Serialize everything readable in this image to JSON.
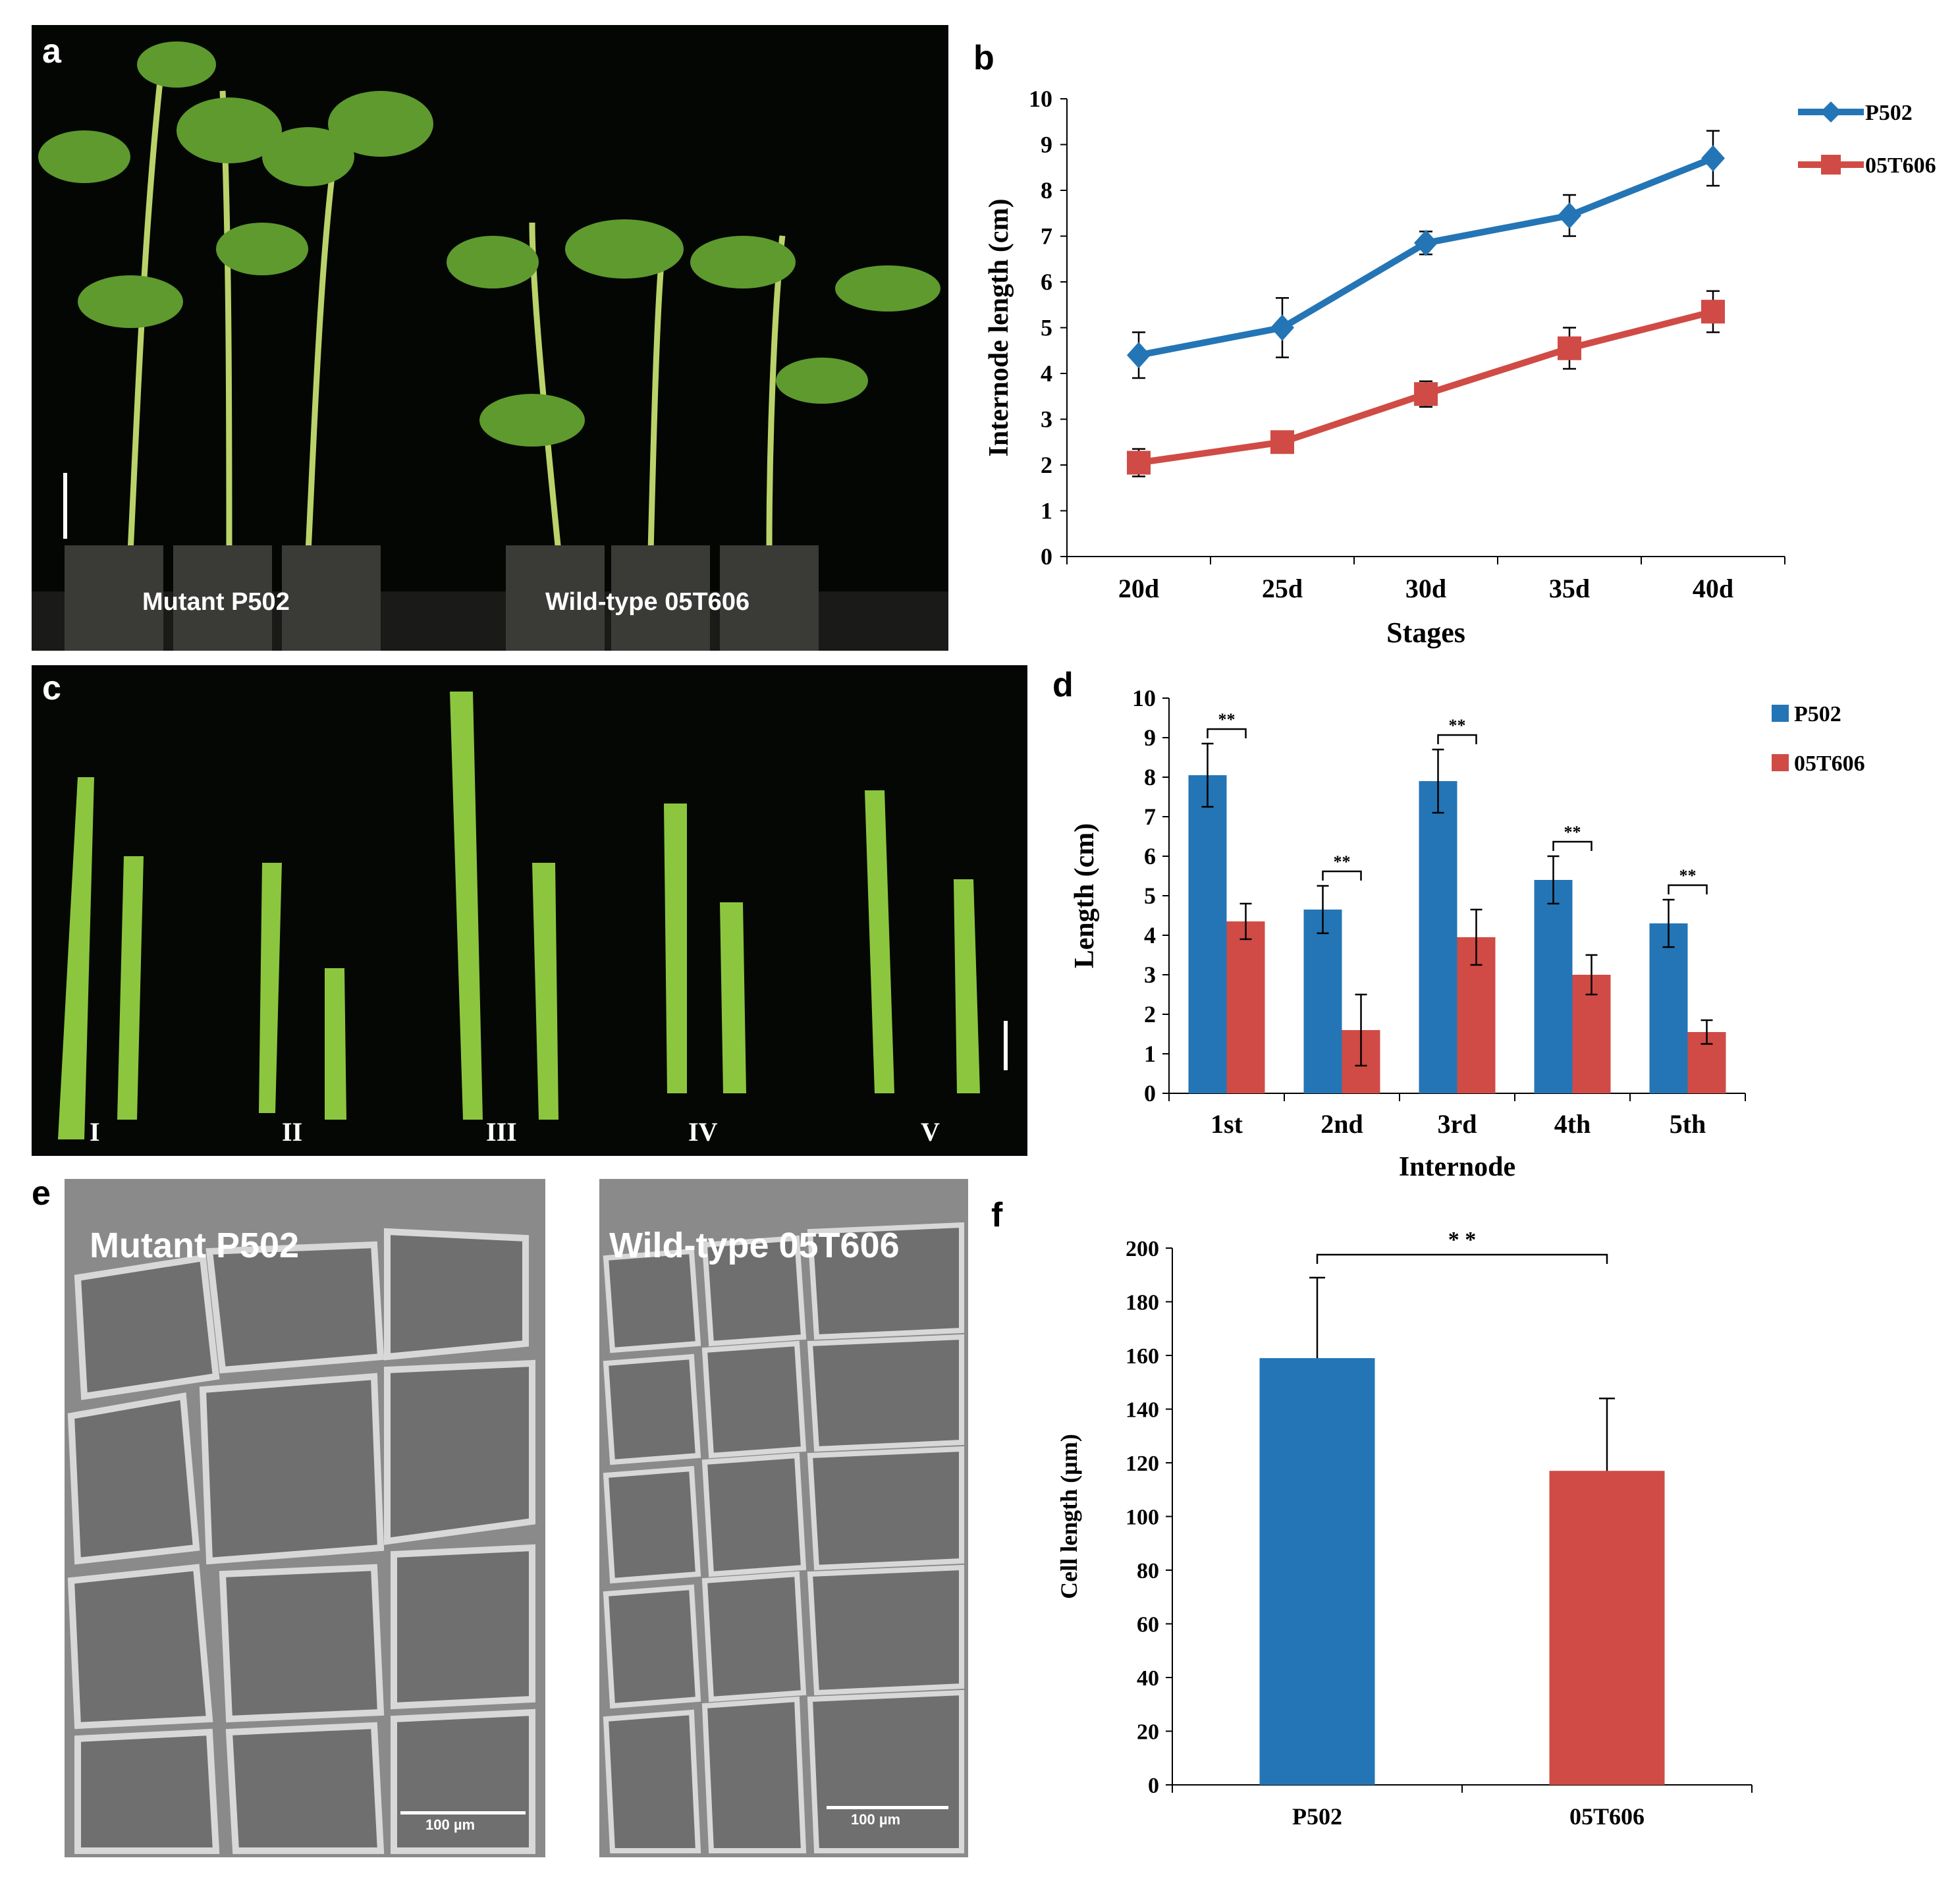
{
  "panels": {
    "a": {
      "letter": "a",
      "label_mutant": "Mutant P502",
      "label_wildtype": "Wild-type  05T606"
    },
    "b": {
      "letter": "b"
    },
    "c": {
      "letter": "c",
      "roman": [
        "I",
        "II",
        "III",
        "IV",
        "V"
      ]
    },
    "d": {
      "letter": "d"
    },
    "e": {
      "letter": "e",
      "label_mutant": "Mutant P502",
      "label_wildtype": "Wild-type 05T606",
      "scale_bar": "100 µm"
    },
    "f": {
      "letter": "f"
    }
  },
  "colors": {
    "p502": "#2475b5",
    "t606": "#d04b45",
    "photo_bg": "#050705",
    "plant": "#7bb83a",
    "sem": "#8a8a8a"
  },
  "chart_data": [
    {
      "id": "b",
      "type": "line",
      "categories": [
        "20d",
        "25d",
        "30d",
        "35d",
        "40d"
      ],
      "series": [
        {
          "name": "P502",
          "values": [
            4.4,
            5.0,
            6.85,
            7.45,
            8.7
          ],
          "errors": [
            0.5,
            0.65,
            0.25,
            0.45,
            0.6
          ]
        },
        {
          "name": "05T606",
          "values": [
            2.05,
            2.5,
            3.55,
            4.55,
            5.35
          ],
          "errors": [
            0.3,
            0.2,
            0.28,
            0.45,
            0.45
          ]
        }
      ],
      "xlabel": "Stages",
      "ylabel": "Internode  length (cm)",
      "ylim": [
        0,
        10
      ],
      "yticks": [
        "0",
        "1",
        "2",
        "3",
        "4",
        "5",
        "6",
        "7",
        "8",
        "9",
        "10"
      ],
      "legend_position": "top-right"
    },
    {
      "id": "d",
      "type": "bar",
      "categories": [
        "1st",
        "2nd",
        "3rd",
        "4th",
        "5th"
      ],
      "series": [
        {
          "name": "P502",
          "values": [
            8.05,
            4.65,
            7.9,
            5.4,
            4.3
          ],
          "errors": [
            0.8,
            0.6,
            0.8,
            0.6,
            0.6
          ]
        },
        {
          "name": "05T606",
          "values": [
            4.35,
            1.6,
            3.95,
            3.0,
            1.55
          ],
          "errors": [
            0.45,
            0.9,
            0.7,
            0.5,
            0.3
          ]
        }
      ],
      "significance": [
        "**",
        "**",
        "**",
        "**",
        "**"
      ],
      "xlabel": "Internode",
      "ylabel": "Length (cm)",
      "ylim": [
        0,
        10
      ],
      "yticks": [
        "0",
        "1",
        "2",
        "3",
        "4",
        "5",
        "6",
        "7",
        "8",
        "9",
        "10"
      ],
      "legend_position": "top-right"
    },
    {
      "id": "f",
      "type": "bar",
      "categories": [
        "P502",
        "05T606"
      ],
      "values": [
        159,
        117
      ],
      "errors": [
        30,
        27
      ],
      "significance": "* *",
      "xlabel": "",
      "ylabel": "Cell length (µm)",
      "ylim": [
        0,
        200
      ],
      "yticks": [
        "0",
        "20",
        "40",
        "60",
        "80",
        "100",
        "120",
        "140",
        "160",
        "180",
        "200"
      ]
    }
  ]
}
